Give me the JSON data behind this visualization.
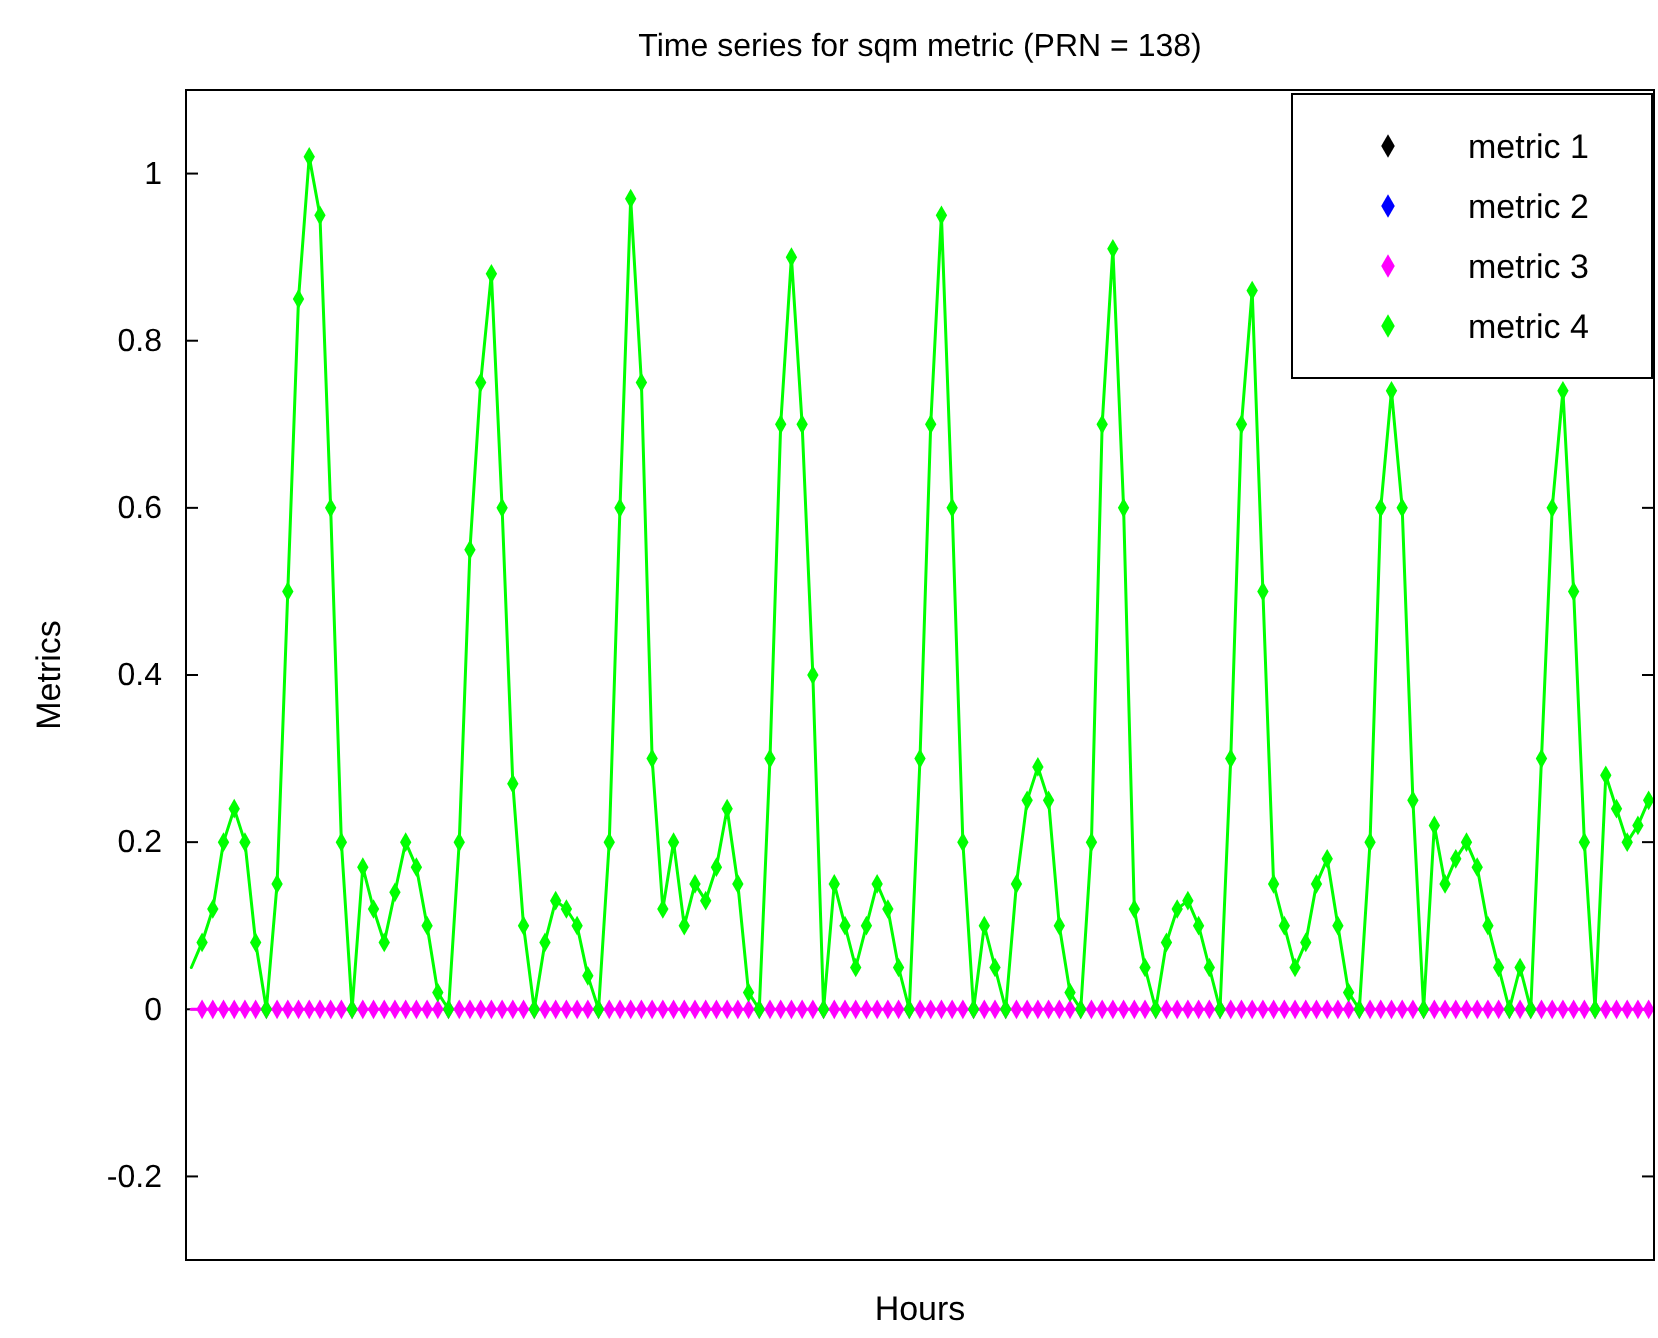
{
  "chart_data": {
    "type": "line",
    "title": "Time series for sqm metric (PRN = 138)",
    "xlabel": "Hours",
    "ylabel": "Metrics",
    "ylim": [
      -0.3,
      1.1
    ],
    "yticks": [
      -0.2,
      0,
      0.2,
      0.4,
      0.6,
      0.8,
      1
    ],
    "grid": false,
    "legend": "top right",
    "marker": "diamond",
    "tick_labels": "y",
    "categories": [
      null,
      null,
      null,
      null,
      null,
      null,
      null,
      null,
      null,
      null,
      null,
      null,
      null,
      null,
      null,
      null,
      null,
      null,
      null,
      null,
      null,
      null,
      null,
      null,
      null,
      null,
      null,
      null,
      null,
      null,
      null,
      null,
      null,
      null,
      null,
      null,
      null,
      null,
      null,
      null,
      null,
      null,
      null,
      null,
      null,
      null,
      null,
      null,
      null,
      null,
      null,
      null,
      null,
      null,
      null,
      null,
      null,
      null,
      null,
      null,
      null,
      null,
      null,
      null,
      null,
      null,
      null,
      null,
      null,
      null,
      null,
      null,
      null,
      null,
      null,
      null,
      null,
      null,
      null,
      null,
      null,
      null,
      null,
      null,
      null,
      null,
      null,
      null,
      null,
      null,
      null,
      null,
      null,
      null,
      null,
      null,
      null,
      null,
      null,
      null,
      null,
      null,
      null,
      null,
      null,
      null,
      null,
      null,
      null,
      null,
      null,
      null,
      null,
      null,
      null,
      null,
      null,
      null,
      null,
      null,
      null,
      null,
      null,
      null,
      null,
      null,
      null,
      null,
      null,
      null,
      null,
      null,
      null,
      null,
      null,
      null,
      null
    ],
    "series": [
      {
        "name": "metric 1",
        "color": "#000000",
        "values": [
          null,
          null,
          null,
          null,
          null,
          null,
          null,
          null,
          null,
          null,
          null,
          null,
          null,
          null,
          null,
          null,
          null,
          null,
          null,
          null,
          null,
          null,
          null,
          null,
          null,
          null,
          null,
          null,
          null,
          null,
          null,
          null,
          null,
          null,
          null,
          null,
          null,
          null,
          null,
          null,
          null,
          null,
          null,
          null,
          null,
          null,
          null,
          null,
          null,
          null,
          null,
          null,
          null,
          null,
          null,
          null,
          null,
          null,
          null,
          null,
          null,
          null,
          null,
          null,
          null,
          null,
          null,
          null,
          null,
          null,
          null,
          null,
          null,
          null,
          null,
          null,
          null,
          null,
          null,
          null,
          null,
          null,
          null,
          null,
          null,
          null,
          null,
          null,
          null,
          null,
          null,
          null,
          null,
          null,
          null,
          null,
          null,
          null,
          null,
          null,
          null,
          null,
          null,
          null,
          null,
          null,
          null,
          null,
          null,
          null,
          null,
          null,
          null,
          null,
          null,
          null,
          null,
          null,
          null,
          null,
          null,
          null,
          null,
          null,
          null,
          null,
          null,
          null,
          null,
          null,
          null,
          null,
          null,
          null,
          null,
          null,
          null
        ]
      },
      {
        "name": "metric 2",
        "color": "#0000ff",
        "values": [
          null,
          null,
          null,
          null,
          null,
          null,
          null,
          null,
          null,
          null,
          null,
          null,
          null,
          null,
          null,
          null,
          null,
          null,
          null,
          null,
          null,
          null,
          null,
          null,
          null,
          null,
          null,
          null,
          null,
          null,
          null,
          null,
          null,
          null,
          null,
          null,
          null,
          null,
          null,
          null,
          null,
          null,
          null,
          null,
          null,
          null,
          null,
          null,
          null,
          null,
          null,
          null,
          null,
          null,
          null,
          null,
          null,
          null,
          null,
          null,
          null,
          null,
          null,
          null,
          null,
          null,
          null,
          null,
          null,
          null,
          null,
          null,
          null,
          null,
          null,
          null,
          null,
          null,
          null,
          null,
          null,
          null,
          null,
          null,
          null,
          null,
          null,
          null,
          null,
          null,
          null,
          null,
          null,
          null,
          null,
          null,
          null,
          null,
          null,
          null,
          null,
          null,
          null,
          null,
          null,
          null,
          null,
          null,
          null,
          null,
          null,
          null,
          null,
          null,
          null,
          null,
          null,
          null,
          null,
          null,
          null,
          null,
          null,
          null,
          null,
          null,
          null,
          null,
          null,
          null,
          null,
          null,
          null,
          null,
          null,
          null,
          null
        ]
      },
      {
        "name": "metric 3",
        "color": "#ff00ff",
        "values": [
          0,
          0,
          0,
          0,
          0,
          0,
          0,
          0,
          0,
          0,
          0,
          0,
          0,
          0,
          0,
          0,
          0,
          0,
          0,
          0,
          0,
          0,
          0,
          0,
          0,
          0,
          0,
          0,
          0,
          0,
          0,
          0,
          0,
          0,
          0,
          0,
          0,
          0,
          0,
          0,
          0,
          0,
          0,
          0,
          0,
          0,
          0,
          0,
          0,
          0,
          0,
          0,
          0,
          0,
          0,
          0,
          0,
          0,
          0,
          0,
          0,
          0,
          0,
          0,
          0,
          0,
          0,
          0,
          0,
          0,
          0,
          0,
          0,
          0,
          0,
          0,
          0,
          0,
          0,
          0,
          0,
          0,
          0,
          0,
          0,
          0,
          0,
          0,
          0,
          0,
          0,
          0,
          0,
          0,
          0,
          0,
          0,
          0,
          0,
          0,
          0,
          0,
          0,
          0,
          0,
          0,
          0,
          0,
          0,
          0,
          0,
          0,
          0,
          0,
          0,
          0,
          0,
          0,
          0,
          0,
          0,
          0,
          0,
          0,
          0,
          0,
          0,
          0,
          0,
          0,
          0,
          0,
          0,
          0,
          0,
          0,
          0
        ]
      },
      {
        "name": "metric 4",
        "color": "#00ff00",
        "values": [
          0.05,
          0.08,
          0.12,
          0.2,
          0.24,
          0.2,
          0.08,
          0,
          0.15,
          0.5,
          0.85,
          1.02,
          0.95,
          0.6,
          0.2,
          0,
          0.17,
          0.12,
          0.08,
          0.14,
          0.2,
          0.17,
          0.1,
          0.02,
          0,
          0.2,
          0.55,
          0.75,
          0.88,
          0.6,
          0.27,
          0.1,
          0,
          0.08,
          0.13,
          0.12,
          0.1,
          0.04,
          0,
          0.2,
          0.6,
          0.97,
          0.75,
          0.3,
          0.12,
          0.2,
          0.1,
          0.15,
          0.13,
          0.17,
          0.24,
          0.15,
          0.02,
          0,
          0.3,
          0.7,
          0.9,
          0.7,
          0.4,
          0,
          0.15,
          0.1,
          0.05,
          0.1,
          0.15,
          0.12,
          0.05,
          0,
          0.3,
          0.7,
          0.95,
          0.6,
          0.2,
          0,
          0.1,
          0.05,
          0,
          0.15,
          0.25,
          0.29,
          0.25,
          0.1,
          0.02,
          0,
          0.2,
          0.7,
          0.91,
          0.6,
          0.12,
          0.05,
          0,
          0.08,
          0.12,
          0.13,
          0.1,
          0.05,
          0,
          0.3,
          0.7,
          0.86,
          0.5,
          0.15,
          0.1,
          0.05,
          0.08,
          0.15,
          0.18,
          0.1,
          0.02,
          0,
          0.2,
          0.6,
          0.74,
          0.6,
          0.25,
          0,
          0.22,
          0.15,
          0.18,
          0.2,
          0.17,
          0.1,
          0.05,
          0,
          0.05,
          0,
          0.3,
          0.6,
          0.74,
          0.5,
          0.2,
          0,
          0.28,
          0.24,
          0.2,
          0.22,
          0.25
        ]
      }
    ]
  }
}
